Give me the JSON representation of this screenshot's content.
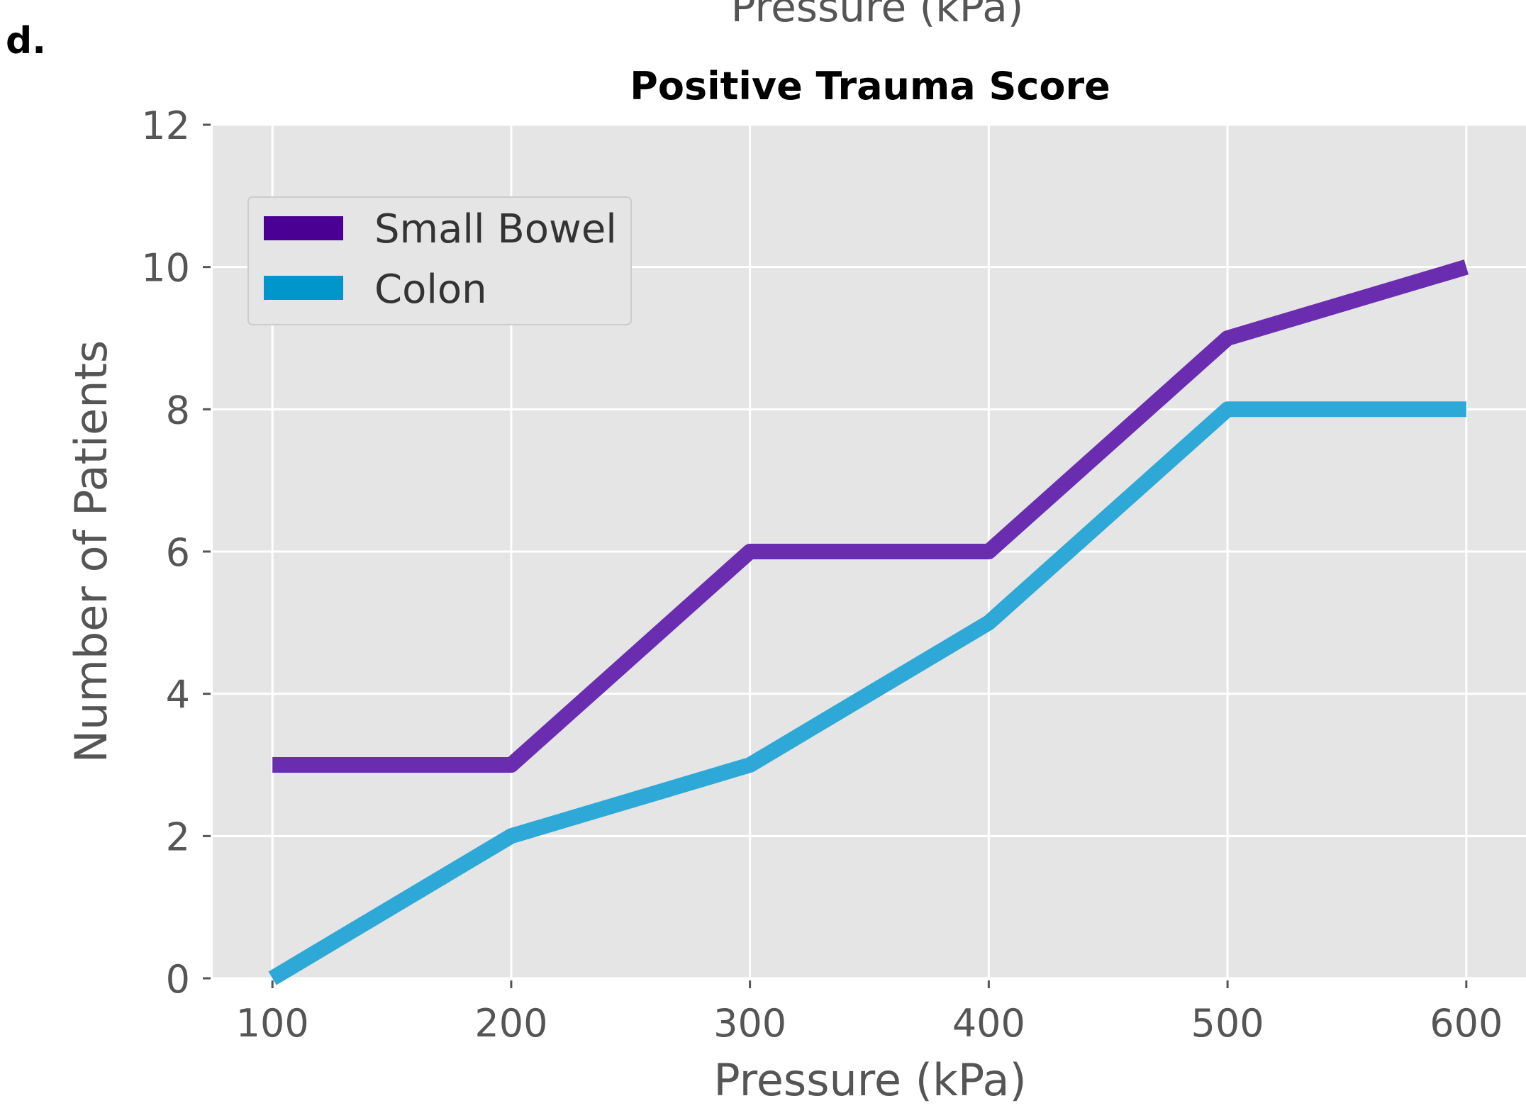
{
  "panel_label": "d.",
  "cropped_top_label": "Pressure (kPa)",
  "chart_data": {
    "type": "line",
    "title": "Positive Trauma Score",
    "xlabel": "Pressure (kPa)",
    "ylabel": "Number of Patients",
    "x": [
      100,
      200,
      300,
      400,
      500,
      600
    ],
    "xlim": [
      75,
      625
    ],
    "ylim": [
      0,
      12
    ],
    "xticks": [
      100,
      200,
      300,
      400,
      500,
      600
    ],
    "yticks": [
      0,
      2,
      4,
      6,
      8,
      10,
      12
    ],
    "grid": true,
    "legend_position": "upper-left",
    "series": [
      {
        "name": "Small Bowel",
        "color": "#6a2db0",
        "legend_color": "#4b0094",
        "values": [
          3,
          3,
          6,
          6,
          9,
          10
        ]
      },
      {
        "name": "Colon",
        "color": "#2ea8d6",
        "legend_color": "#0096cc",
        "values": [
          0,
          2,
          3,
          5,
          8,
          8
        ]
      }
    ]
  }
}
